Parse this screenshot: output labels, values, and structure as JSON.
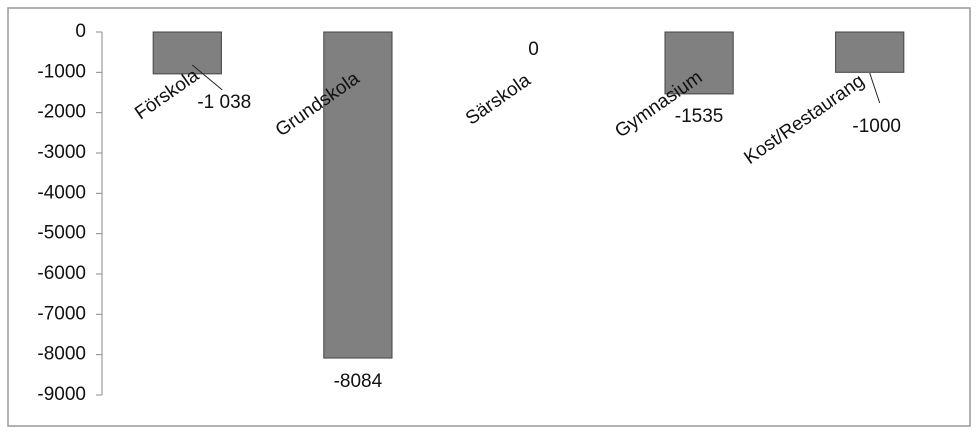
{
  "chart_data": {
    "type": "bar",
    "categories": [
      "Förskola",
      "Grundskola",
      "Särskola",
      "Gymnasium",
      "Kost/Restaurang"
    ],
    "values": [
      -1038,
      -8084,
      0,
      -1535,
      -1000
    ],
    "value_labels": [
      "-1 038",
      "-8084",
      "0",
      "-1535",
      "-1000"
    ],
    "color": "#808080",
    "ylim": [
      -9000,
      0
    ],
    "yticks": [
      0,
      -1000,
      -2000,
      -3000,
      -4000,
      -5000,
      -6000,
      -7000,
      -8000,
      -9000
    ]
  }
}
